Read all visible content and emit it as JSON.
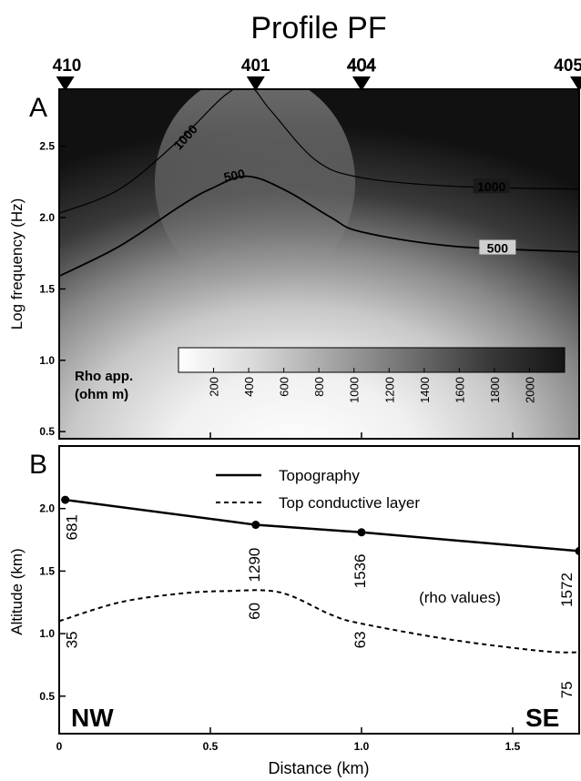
{
  "title": "Profile PF",
  "stations": [
    {
      "label": "410",
      "x": 0.02,
      "outlined": false
    },
    {
      "label": "401",
      "x": 0.65,
      "outlined": false
    },
    {
      "label": "404",
      "x": 1.0,
      "outlined": true
    },
    {
      "label": "405",
      "x": 1.72,
      "outlined": false
    }
  ],
  "panel_a": {
    "letter": "A",
    "ylabel": "Log frequency (Hz)",
    "yticks": [
      "0.5",
      "1.0",
      "1.5",
      "2.0",
      "2.5"
    ],
    "colorbar": {
      "label_line1": "Rho app.",
      "label_line2": "(ohm m)",
      "ticks": [
        "200",
        "400",
        "600",
        "800",
        "1000",
        "1200",
        "1400",
        "1600",
        "1800",
        "2000"
      ]
    },
    "contour_labels": [
      "1000",
      "500",
      "1000",
      "500"
    ]
  },
  "panel_b": {
    "letter": "B",
    "ylabel": "Altitude (km)",
    "xlabel": "Distance (km)",
    "yticks": [
      "0.5",
      "1.0",
      "1.5",
      "2.0"
    ],
    "xticks": [
      "0",
      "0.5",
      "1.0",
      "1.5"
    ],
    "legend": [
      "Topography",
      "Top conductive layer"
    ],
    "annotation": "(rho values)",
    "left_corner": "NW",
    "right_corner": "SE"
  },
  "chart_data": [
    {
      "type": "heatmap",
      "panel": "A",
      "xlabel": "",
      "ylabel": "Log frequency (Hz)",
      "xlim": [
        0,
        1.72
      ],
      "ylim": [
        0.45,
        2.9
      ],
      "colorbar_range": [
        0,
        2200
      ],
      "contours": [
        {
          "level": 1000,
          "points": [
            [
              0,
              2.03
            ],
            [
              0.2,
              2.2
            ],
            [
              0.4,
              2.55
            ],
            [
              0.55,
              2.86
            ],
            [
              0.63,
              2.92
            ],
            [
              0.7,
              2.75
            ],
            [
              0.85,
              2.4
            ],
            [
              1.0,
              2.28
            ],
            [
              1.3,
              2.22
            ],
            [
              1.72,
              2.2
            ]
          ]
        },
        {
          "level": 500,
          "points": [
            [
              0,
              1.59
            ],
            [
              0.2,
              1.8
            ],
            [
              0.4,
              2.08
            ],
            [
              0.5,
              2.2
            ],
            [
              0.62,
              2.29
            ],
            [
              0.75,
              2.19
            ],
            [
              0.9,
              2.0
            ],
            [
              1.0,
              1.9
            ],
            [
              1.3,
              1.8
            ],
            [
              1.72,
              1.76
            ]
          ]
        }
      ]
    },
    {
      "type": "line",
      "panel": "B",
      "xlabel": "Distance (km)",
      "ylabel": "Altitude (km)",
      "xlim": [
        0,
        1.72
      ],
      "ylim": [
        0.2,
        2.5
      ],
      "series": [
        {
          "name": "Topography",
          "style": "solid",
          "x": [
            0.02,
            0.65,
            1.0,
            1.72
          ],
          "y": [
            2.07,
            1.87,
            1.81,
            1.66
          ]
        },
        {
          "name": "Top conductive layer",
          "style": "dashed",
          "x": [
            0,
            0.2,
            0.4,
            0.55,
            0.73,
            0.9,
            1.0,
            1.3,
            1.6,
            1.72
          ],
          "y": [
            1.1,
            1.25,
            1.32,
            1.34,
            1.33,
            1.15,
            1.08,
            0.95,
            0.86,
            0.85
          ]
        }
      ],
      "rho_values": [
        {
          "station": "410",
          "x": 0.02,
          "topo": "681",
          "layer": "35"
        },
        {
          "station": "401",
          "x": 0.65,
          "topo": "1290",
          "layer": "60"
        },
        {
          "station": "404",
          "x": 1.0,
          "topo": "1536",
          "layer": "63"
        },
        {
          "station": "405",
          "x": 1.72,
          "topo": "1572",
          "layer": "75"
        }
      ]
    }
  ]
}
